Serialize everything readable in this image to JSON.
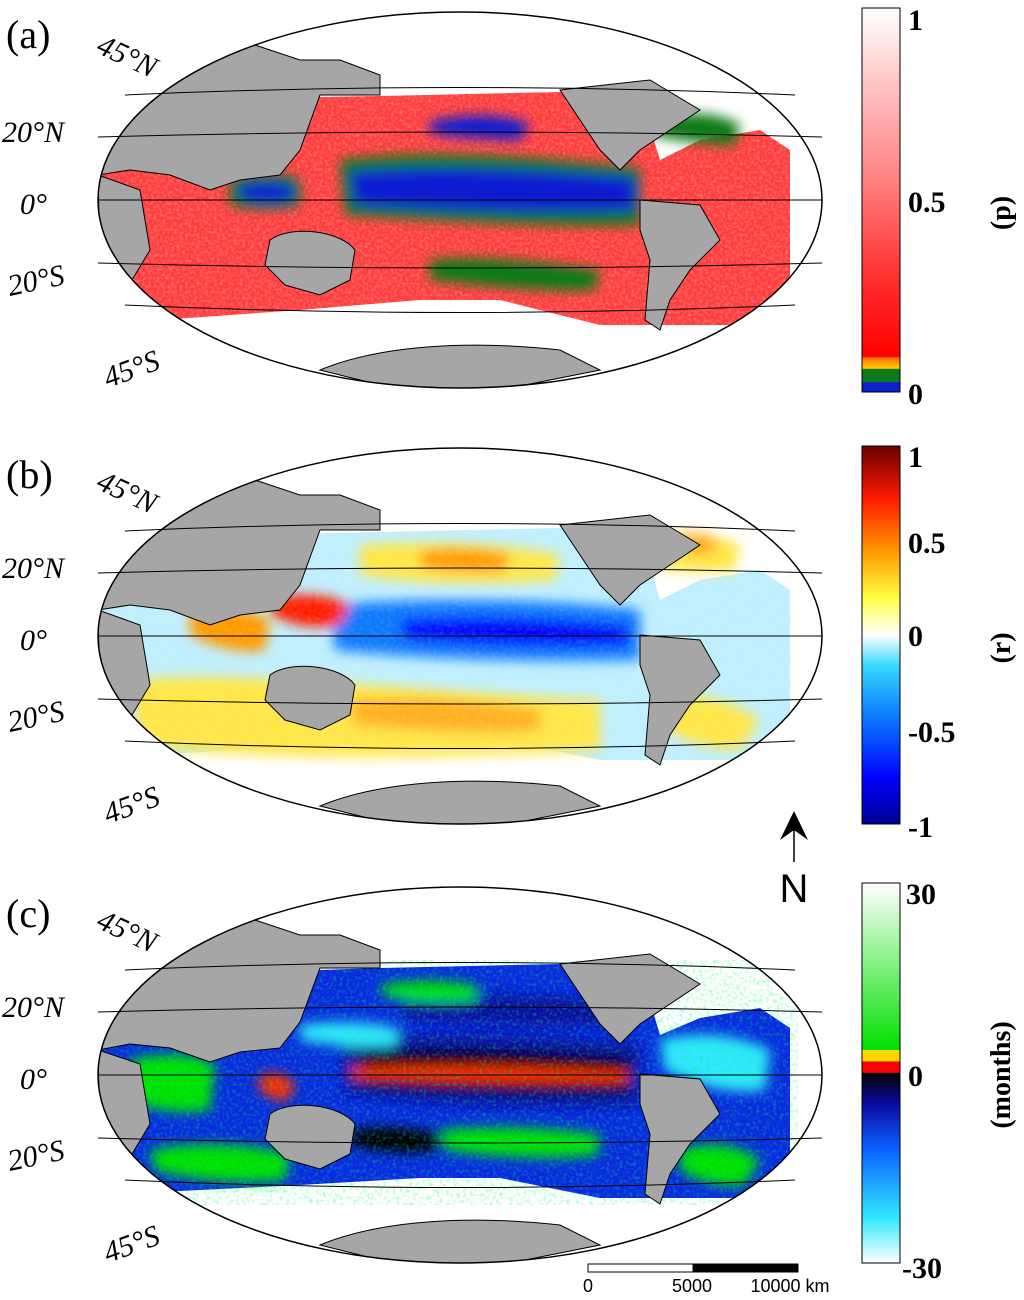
{
  "figure": {
    "panels": [
      {
        "letter": "(a)",
        "colorbar": {
          "title": "(p)",
          "ticks": [
            "1",
            "0.5",
            "0"
          ],
          "tick_values": [
            1,
            0.5,
            0
          ],
          "colors": [
            "#0b1fd0",
            "#0c7a18",
            "#ff6a00",
            "#ffd000",
            "#ff0000",
            "#ff4a4a",
            "#ffb5b5",
            "#ffffff"
          ]
        },
        "lat_labels": [
          "45°N",
          "20°N",
          "0°",
          "20°S",
          "45°S"
        ]
      },
      {
        "letter": "(b)",
        "colorbar": {
          "title": "(r)",
          "ticks": [
            "1",
            "0.5",
            "0",
            "-0.5",
            "-1"
          ],
          "tick_values": [
            1,
            0.5,
            0,
            -0.5,
            -1
          ],
          "colors": [
            "#00008f",
            "#0000ff",
            "#0a78ff",
            "#38d9ff",
            "#ffffff",
            "#ffff40",
            "#ff9a00",
            "#ff1a00",
            "#6b0000"
          ]
        },
        "lat_labels": [
          "45°N",
          "20°N",
          "0°",
          "20°S",
          "45°S"
        ]
      },
      {
        "letter": "(c)",
        "colorbar": {
          "title": "(months)",
          "ticks": [
            "30",
            "0",
            "-30"
          ],
          "tick_values": [
            30,
            0,
            -30
          ],
          "colors": [
            "#ffffff",
            "#30e7ff",
            "#0a60ff",
            "#0a0aa0",
            "#000000",
            "#ff0000",
            "#ffd800",
            "#00e000",
            "#b8ffb8",
            "#ffffff"
          ]
        },
        "lat_labels": [
          "45°N",
          "20°N",
          "0°",
          "20°S",
          "45°S"
        ]
      }
    ],
    "north_arrow": {
      "label": "N"
    },
    "scale_bar": {
      "labels": [
        "0",
        "5000",
        "10000 km"
      ]
    },
    "land_color": "#a6a6a6"
  }
}
